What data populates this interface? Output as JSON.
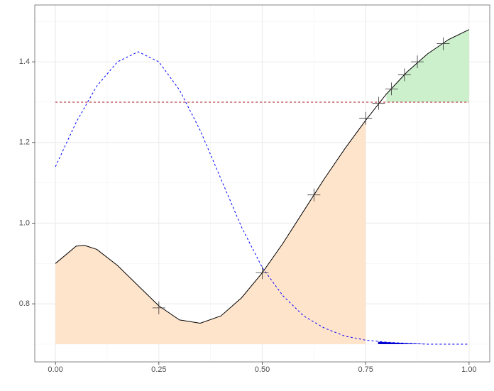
{
  "chart_data": {
    "type": "line",
    "xlim": [
      -0.05,
      1.05
    ],
    "ylim": [
      0.656,
      1.541
    ],
    "xticks": [
      {
        "value": 0,
        "label": "0.00"
      },
      {
        "value": 0.25,
        "label": "0.25"
      },
      {
        "value": 0.5,
        "label": "0.50"
      },
      {
        "value": 0.75,
        "label": "0.75"
      },
      {
        "value": 1,
        "label": "1.00"
      }
    ],
    "yticks": [
      {
        "value": 0.8,
        "label": "0.8"
      },
      {
        "value": 1.0,
        "label": "1.0"
      },
      {
        "value": 1.2,
        "label": "1.2"
      },
      {
        "value": 1.4,
        "label": "1.4"
      }
    ],
    "xminor": [
      0.125,
      0.375,
      0.625,
      0.875
    ],
    "yminor": [
      0.7,
      0.9,
      1.1,
      1.3,
      1.5
    ],
    "grid": true,
    "areas": [
      {
        "color": "#ffe4cc",
        "base": 0.7,
        "x": [
          0,
          0.05,
          0.07,
          0.1,
          0.15,
          0.2,
          0.25,
          0.3,
          0.35,
          0.4,
          0.45,
          0.5,
          0.55,
          0.6,
          0.65,
          0.7,
          0.75
        ],
        "values": [
          0.9,
          0.943,
          0.945,
          0.935,
          0.895,
          0.845,
          0.795,
          0.76,
          0.752,
          0.77,
          0.815,
          0.877,
          0.95,
          1.03,
          1.11,
          1.185,
          1.255
        ]
      },
      {
        "color": "#ccefcc",
        "base": 1.3,
        "x": [
          0.8,
          0.85,
          0.9,
          0.95,
          1.0
        ],
        "values": [
          1.32,
          1.375,
          1.42,
          1.455,
          1.48
        ]
      },
      {
        "color": "#0000cc",
        "base": 0.7,
        "x": [
          0.78,
          0.8,
          0.85,
          0.9
        ],
        "values": [
          0.706,
          0.705,
          0.702,
          0.7
        ]
      }
    ],
    "series": [
      {
        "color": "#000000",
        "dash": false,
        "x": [
          0,
          0.05,
          0.07,
          0.1,
          0.15,
          0.2,
          0.25,
          0.3,
          0.35,
          0.4,
          0.45,
          0.5,
          0.55,
          0.6,
          0.65,
          0.7,
          0.75,
          0.8,
          0.85,
          0.9,
          0.95,
          1.0
        ],
        "values": [
          0.9,
          0.943,
          0.945,
          0.935,
          0.895,
          0.845,
          0.795,
          0.76,
          0.752,
          0.77,
          0.815,
          0.877,
          0.95,
          1.03,
          1.11,
          1.185,
          1.255,
          1.32,
          1.375,
          1.42,
          1.455,
          1.48
        ]
      },
      {
        "color": "#0000ff",
        "dash": true,
        "x": [
          0,
          0.05,
          0.1,
          0.15,
          0.2,
          0.25,
          0.3,
          0.35,
          0.4,
          0.45,
          0.5,
          0.55,
          0.6,
          0.65,
          0.7,
          0.75,
          0.8,
          0.85,
          0.9,
          0.95,
          1.0
        ],
        "values": [
          1.14,
          1.25,
          1.34,
          1.4,
          1.425,
          1.4,
          1.33,
          1.23,
          1.11,
          0.99,
          0.89,
          0.82,
          0.77,
          0.74,
          0.72,
          0.71,
          0.705,
          0.702,
          0.7,
          0.7,
          0.7
        ]
      },
      {
        "color": "#a50f15",
        "dash": true,
        "x": [
          0,
          1
        ],
        "values": [
          1.3,
          1.3
        ]
      }
    ],
    "points": {
      "color": "#333333",
      "x": [
        0.25,
        0.5,
        0.625,
        0.75,
        0.78125,
        0.8125,
        0.84375,
        0.875,
        0.9375
      ],
      "values": [
        0.79,
        0.877,
        1.07,
        1.26,
        1.297,
        1.333,
        1.368,
        1.4,
        1.445
      ]
    }
  }
}
